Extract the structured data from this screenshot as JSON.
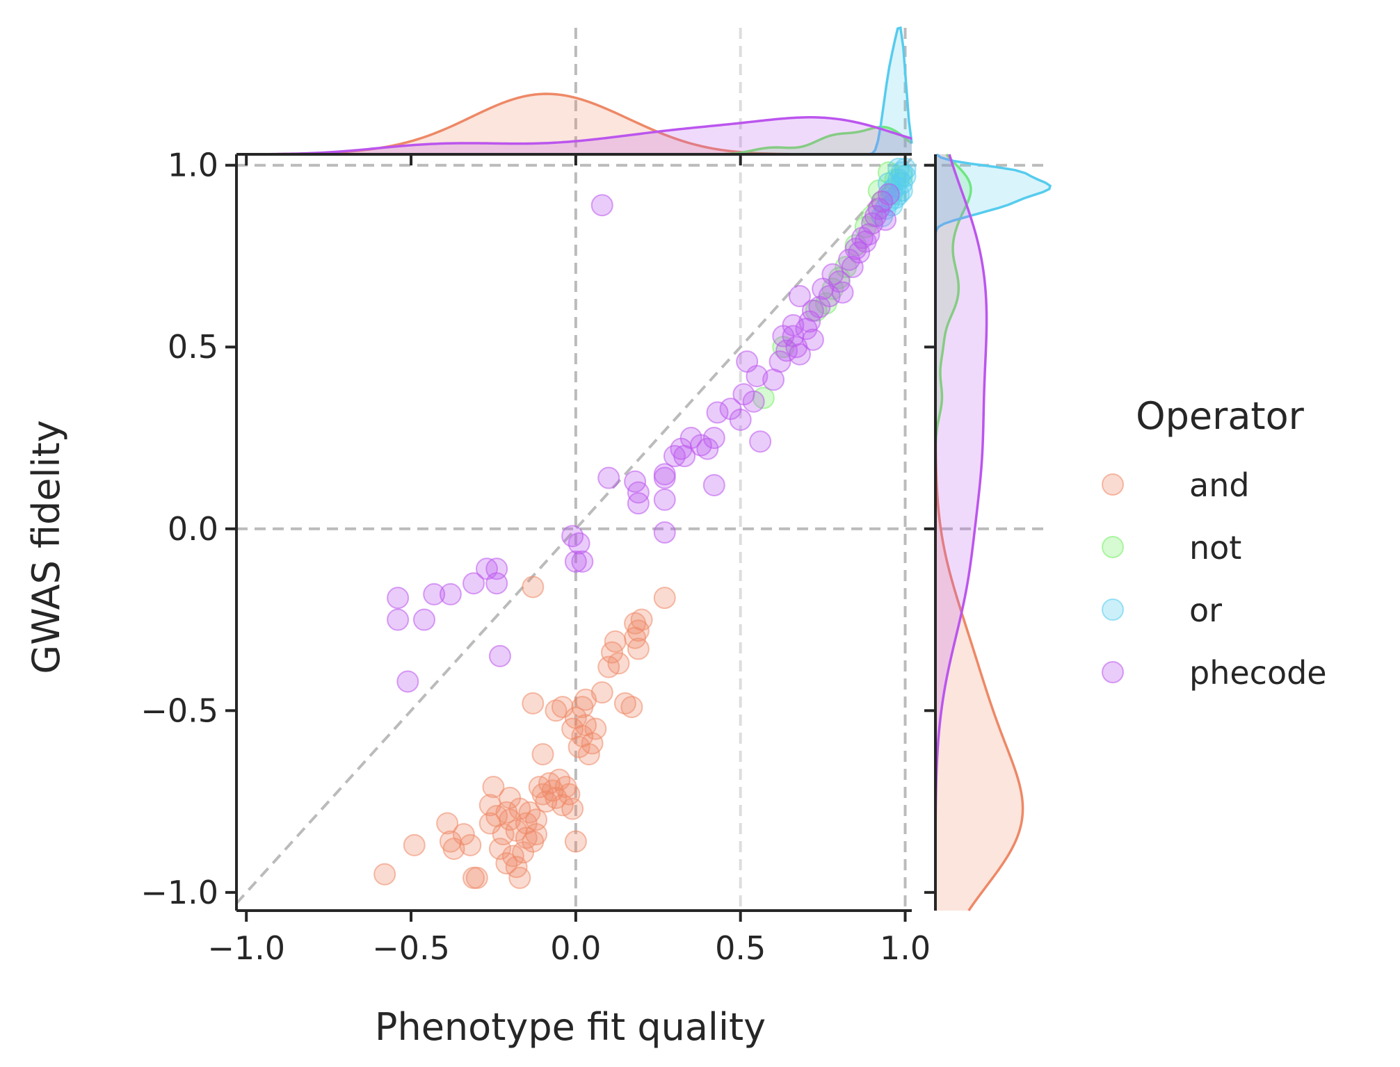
{
  "chart_data": {
    "type": "scatter",
    "title": "",
    "xlabel": "Phenotype fit quality",
    "ylabel": "GWAS fidelity",
    "xlim": [
      -1.03,
      1.02
    ],
    "ylim": [
      -1.05,
      1.03
    ],
    "xticks": [
      -1.0,
      -0.5,
      0.0,
      0.5,
      1.0
    ],
    "yticks": [
      -1.0,
      -0.5,
      0.0,
      0.5,
      1.0
    ],
    "xtick_labels": [
      "−1.0",
      "−0.5",
      "0.0",
      "0.5",
      "1.0"
    ],
    "ytick_labels": [
      "−1.0",
      "−0.5",
      "0.0",
      "0.5",
      "1.0"
    ],
    "grid": false,
    "reference_lines": {
      "vertical": [
        0.0,
        0.5,
        1.0
      ],
      "horizontal": [
        0.0,
        1.0
      ],
      "diagonal": true
    },
    "marginals": "kde by operator (top: x, right: y)",
    "legend": {
      "title": "Operator",
      "placement": "right",
      "entries": [
        "and",
        "not",
        "or",
        "phecode"
      ]
    },
    "series": [
      {
        "name": "and",
        "color": "#ee8866",
        "points": [
          [
            -0.58,
            -0.95
          ],
          [
            -0.49,
            -0.87
          ],
          [
            -0.39,
            -0.81
          ],
          [
            -0.38,
            -0.86
          ],
          [
            -0.37,
            -0.88
          ],
          [
            -0.34,
            -0.84
          ],
          [
            -0.32,
            -0.87
          ],
          [
            -0.31,
            -0.96
          ],
          [
            -0.3,
            -0.96
          ],
          [
            -0.26,
            -0.76
          ],
          [
            -0.26,
            -0.81
          ],
          [
            -0.25,
            -0.71
          ],
          [
            -0.24,
            -0.79
          ],
          [
            -0.23,
            -0.88
          ],
          [
            -0.22,
            -0.84
          ],
          [
            -0.21,
            -0.92
          ],
          [
            -0.21,
            -0.78
          ],
          [
            -0.2,
            -0.8
          ],
          [
            -0.2,
            -0.74
          ],
          [
            -0.19,
            -0.9
          ],
          [
            -0.18,
            -0.93
          ],
          [
            -0.18,
            -0.83
          ],
          [
            -0.17,
            -0.96
          ],
          [
            -0.17,
            -0.77
          ],
          [
            -0.16,
            -0.89
          ],
          [
            -0.15,
            -0.85
          ],
          [
            -0.15,
            -0.81
          ],
          [
            -0.14,
            -0.78
          ],
          [
            -0.13,
            -0.86
          ],
          [
            -0.12,
            -0.84
          ],
          [
            -0.12,
            -0.8
          ],
          [
            -0.11,
            -0.71
          ],
          [
            -0.1,
            -0.73
          ],
          [
            -0.1,
            -0.62
          ],
          [
            -0.09,
            -0.75
          ],
          [
            -0.08,
            -0.7
          ],
          [
            -0.07,
            -0.72
          ],
          [
            -0.06,
            -0.74
          ],
          [
            -0.05,
            -0.69
          ],
          [
            -0.04,
            -0.76
          ],
          [
            -0.03,
            -0.71
          ],
          [
            -0.02,
            -0.73
          ],
          [
            -0.01,
            -0.77
          ],
          [
            0.0,
            -0.86
          ],
          [
            -0.01,
            -0.55
          ],
          [
            0.0,
            -0.52
          ],
          [
            0.01,
            -0.6
          ],
          [
            0.02,
            -0.57
          ],
          [
            0.03,
            -0.47
          ],
          [
            0.03,
            -0.54
          ],
          [
            0.04,
            -0.62
          ],
          [
            0.05,
            -0.59
          ],
          [
            0.06,
            -0.55
          ],
          [
            -0.13,
            -0.16
          ],
          [
            -0.13,
            -0.48
          ],
          [
            -0.06,
            -0.5
          ],
          [
            0.08,
            -0.45
          ],
          [
            0.1,
            -0.38
          ],
          [
            0.11,
            -0.34
          ],
          [
            0.12,
            -0.31
          ],
          [
            0.13,
            -0.37
          ],
          [
            0.15,
            -0.48
          ],
          [
            0.17,
            -0.49
          ],
          [
            0.18,
            -0.3
          ],
          [
            0.19,
            -0.28
          ],
          [
            0.19,
            -0.33
          ],
          [
            0.18,
            -0.26
          ],
          [
            0.2,
            -0.25
          ],
          [
            0.27,
            -0.19
          ],
          [
            -0.04,
            -0.49
          ],
          [
            0.02,
            -0.49
          ]
        ]
      },
      {
        "name": "not",
        "color": "#77ee66",
        "points": [
          [
            0.95,
            0.98
          ],
          [
            0.97,
            0.96
          ],
          [
            0.99,
            0.97
          ],
          [
            0.93,
            0.9
          ],
          [
            0.9,
            0.86
          ],
          [
            0.88,
            0.83
          ],
          [
            0.85,
            0.78
          ],
          [
            0.82,
            0.72
          ],
          [
            0.8,
            0.69
          ],
          [
            0.78,
            0.66
          ],
          [
            0.76,
            0.62
          ],
          [
            0.73,
            0.6
          ],
          [
            0.57,
            0.36
          ],
          [
            0.63,
            0.5
          ],
          [
            0.92,
            0.93
          ],
          [
            0.96,
            0.92
          ]
        ]
      },
      {
        "name": "or",
        "color": "#55ccee",
        "points": [
          [
            0.98,
            0.99
          ],
          [
            0.99,
            0.98
          ],
          [
            1.0,
            0.97
          ],
          [
            0.99,
            0.95
          ],
          [
            0.97,
            0.94
          ],
          [
            0.96,
            0.93
          ],
          [
            0.97,
            0.91
          ],
          [
            0.95,
            0.9
          ],
          [
            0.98,
            0.96
          ],
          [
            1.0,
            0.99
          ],
          [
            0.94,
            0.88
          ],
          [
            0.96,
            0.89
          ],
          [
            0.99,
            0.93
          ],
          [
            0.93,
            0.86
          ],
          [
            0.98,
            0.92
          ],
          [
            0.95,
            0.95
          ]
        ]
      },
      {
        "name": "phecode",
        "color": "#bb55ee",
        "points": [
          [
            0.08,
            0.89
          ],
          [
            -0.54,
            -0.19
          ],
          [
            -0.54,
            -0.25
          ],
          [
            -0.46,
            -0.25
          ],
          [
            -0.43,
            -0.18
          ],
          [
            -0.38,
            -0.18
          ],
          [
            -0.31,
            -0.15
          ],
          [
            -0.27,
            -0.11
          ],
          [
            -0.24,
            -0.11
          ],
          [
            -0.24,
            -0.15
          ],
          [
            -0.51,
            -0.42
          ],
          [
            -0.23,
            -0.35
          ],
          [
            -0.01,
            -0.02
          ],
          [
            0.01,
            -0.04
          ],
          [
            0.0,
            -0.09
          ],
          [
            0.02,
            -0.09
          ],
          [
            0.1,
            0.14
          ],
          [
            0.18,
            0.13
          ],
          [
            0.19,
            0.1
          ],
          [
            0.19,
            0.07
          ],
          [
            0.27,
            0.14
          ],
          [
            0.27,
            0.08
          ],
          [
            0.27,
            -0.01
          ],
          [
            0.27,
            0.15
          ],
          [
            0.3,
            0.2
          ],
          [
            0.32,
            0.22
          ],
          [
            0.33,
            0.2
          ],
          [
            0.35,
            0.25
          ],
          [
            0.38,
            0.23
          ],
          [
            0.4,
            0.22
          ],
          [
            0.42,
            0.25
          ],
          [
            0.42,
            0.12
          ],
          [
            0.43,
            0.32
          ],
          [
            0.47,
            0.33
          ],
          [
            0.5,
            0.3
          ],
          [
            0.51,
            0.37
          ],
          [
            0.52,
            0.46
          ],
          [
            0.54,
            0.35
          ],
          [
            0.55,
            0.42
          ],
          [
            0.56,
            0.24
          ],
          [
            0.6,
            0.41
          ],
          [
            0.62,
            0.46
          ],
          [
            0.63,
            0.53
          ],
          [
            0.64,
            0.49
          ],
          [
            0.66,
            0.56
          ],
          [
            0.67,
            0.5
          ],
          [
            0.68,
            0.48
          ],
          [
            0.7,
            0.55
          ],
          [
            0.71,
            0.57
          ],
          [
            0.72,
            0.52
          ],
          [
            0.74,
            0.61
          ],
          [
            0.75,
            0.66
          ],
          [
            0.77,
            0.64
          ],
          [
            0.78,
            0.7
          ],
          [
            0.8,
            0.68
          ],
          [
            0.81,
            0.65
          ],
          [
            0.83,
            0.74
          ],
          [
            0.84,
            0.72
          ],
          [
            0.85,
            0.77
          ],
          [
            0.86,
            0.76
          ],
          [
            0.87,
            0.8
          ],
          [
            0.88,
            0.79
          ],
          [
            0.89,
            0.81
          ],
          [
            0.9,
            0.84
          ],
          [
            0.91,
            0.86
          ],
          [
            0.92,
            0.88
          ],
          [
            0.93,
            0.9
          ],
          [
            0.94,
            0.85
          ],
          [
            0.95,
            0.92
          ],
          [
            0.68,
            0.64
          ],
          [
            0.72,
            0.6
          ],
          [
            0.66,
            0.53
          ]
        ]
      }
    ]
  }
}
